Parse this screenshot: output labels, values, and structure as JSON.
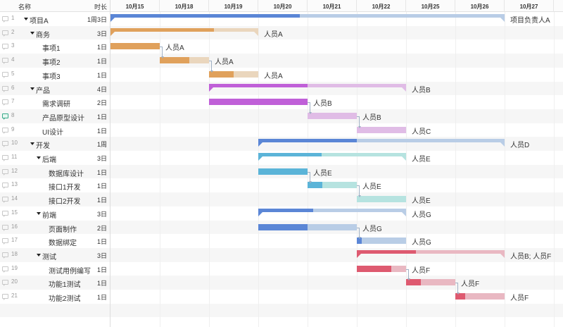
{
  "header": {
    "name_label": "名称",
    "duration_label": "时长"
  },
  "dates": [
    "10月15",
    "10月18",
    "10月19",
    "10月20",
    "10月21",
    "10月22",
    "10月25",
    "10月26",
    "10月27"
  ],
  "colors": {
    "blue_done": "#5b86d6",
    "blue_rest": "#b9cde6",
    "orange_done": "#e0a15c",
    "orange_rest": "#ead6bd",
    "purple_done": "#c060d8",
    "purple_rest": "#e0bce6",
    "cyan_done": "#5bb4d8",
    "cyan_rest": "#b6e3e0",
    "red_done": "#de5a70",
    "red_rest": "#e9b8c2"
  },
  "tasks": [
    {
      "id": "1",
      "name": "项目A",
      "duration": "1周3日",
      "level": 0,
      "group": true,
      "assignee": "项目负责人A",
      "start": 0,
      "end": 8,
      "progress": 0.48,
      "color": "blue"
    },
    {
      "id": "2",
      "name": "商务",
      "duration": "3日",
      "level": 1,
      "group": true,
      "assignee": "人员A",
      "start": 0,
      "end": 3,
      "progress": 0.7,
      "color": "orange"
    },
    {
      "id": "3",
      "name": "事项1",
      "duration": "1日",
      "level": 2,
      "group": false,
      "assignee": "人员A",
      "start": 0,
      "end": 1,
      "progress": 1.0,
      "color": "orange"
    },
    {
      "id": "4",
      "name": "事项2",
      "duration": "1日",
      "level": 2,
      "group": false,
      "assignee": "人员A",
      "start": 1,
      "end": 2,
      "progress": 0.6,
      "color": "orange"
    },
    {
      "id": "5",
      "name": "事项3",
      "duration": "1日",
      "level": 2,
      "group": false,
      "assignee": "人员A",
      "start": 2,
      "end": 3,
      "progress": 0.5,
      "color": "orange"
    },
    {
      "id": "6",
      "name": "产品",
      "duration": "4日",
      "level": 1,
      "group": true,
      "assignee": "人员B",
      "start": 2,
      "end": 6,
      "progress": 0.5,
      "color": "purple"
    },
    {
      "id": "7",
      "name": "需求调研",
      "duration": "2日",
      "level": 2,
      "group": false,
      "assignee": "人员B",
      "start": 2,
      "end": 4,
      "progress": 1.0,
      "color": "purple"
    },
    {
      "id": "8",
      "name": "产品原型设计",
      "duration": "1日",
      "level": 2,
      "group": false,
      "assignee": "人员B",
      "start": 4,
      "end": 5,
      "progress": 0.0,
      "color": "purple",
      "comment": true
    },
    {
      "id": "9",
      "name": "UI设计",
      "duration": "1日",
      "level": 2,
      "group": false,
      "assignee": "人员C",
      "start": 5,
      "end": 6,
      "progress": 0.0,
      "color": "purple"
    },
    {
      "id": "10",
      "name": "开发",
      "duration": "1周",
      "level": 1,
      "group": true,
      "assignee": "人员D",
      "start": 3,
      "end": 8,
      "progress": 0.4,
      "color": "blue"
    },
    {
      "id": "11",
      "name": "后端",
      "duration": "3日",
      "level": 2,
      "group": true,
      "assignee": "人员E",
      "start": 3,
      "end": 6,
      "progress": 0.43,
      "color": "cyan"
    },
    {
      "id": "12",
      "name": "数据库设计",
      "duration": "1日",
      "level": 3,
      "group": false,
      "assignee": "人员E",
      "start": 3,
      "end": 4,
      "progress": 1.0,
      "color": "cyan"
    },
    {
      "id": "13",
      "name": "接口1开发",
      "duration": "1日",
      "level": 3,
      "group": false,
      "assignee": "人员E",
      "start": 4,
      "end": 5,
      "progress": 0.3,
      "color": "cyan"
    },
    {
      "id": "14",
      "name": "接口2开发",
      "duration": "1日",
      "level": 3,
      "group": false,
      "assignee": "人员E",
      "start": 5,
      "end": 6,
      "progress": 0.0,
      "color": "cyan"
    },
    {
      "id": "15",
      "name": "前端",
      "duration": "3日",
      "level": 2,
      "group": true,
      "assignee": "人员G",
      "start": 3,
      "end": 6,
      "progress": 0.37,
      "color": "blue"
    },
    {
      "id": "16",
      "name": "页面制作",
      "duration": "2日",
      "level": 3,
      "group": false,
      "assignee": "人员G",
      "start": 3,
      "end": 5,
      "progress": 0.5,
      "color": "blue"
    },
    {
      "id": "17",
      "name": "数据绑定",
      "duration": "1日",
      "level": 3,
      "group": false,
      "assignee": "人员G",
      "start": 5,
      "end": 6,
      "progress": 0.1,
      "color": "blue"
    },
    {
      "id": "18",
      "name": "测试",
      "duration": "3日",
      "level": 2,
      "group": true,
      "assignee": "人员B; 人员F",
      "start": 5,
      "end": 8,
      "progress": 0.4,
      "color": "red"
    },
    {
      "id": "19",
      "name": "测试用例编写",
      "duration": "1日",
      "level": 3,
      "group": false,
      "assignee": "人员F",
      "start": 5,
      "end": 6,
      "progress": 0.7,
      "color": "red"
    },
    {
      "id": "20",
      "name": "功能1测试",
      "duration": "1日",
      "level": 3,
      "group": false,
      "assignee": "人员F",
      "start": 6,
      "end": 7,
      "progress": 0.3,
      "color": "red"
    },
    {
      "id": "21",
      "name": "功能2测试",
      "duration": "1日",
      "level": 3,
      "group": false,
      "assignee": "人员F",
      "start": 7,
      "end": 8,
      "progress": 0.2,
      "color": "red"
    }
  ],
  "dependencies": [
    [
      "3",
      "4"
    ],
    [
      "4",
      "5"
    ],
    [
      "7",
      "8"
    ],
    [
      "8",
      "9"
    ],
    [
      "12",
      "13"
    ],
    [
      "13",
      "14"
    ],
    [
      "16",
      "17"
    ],
    [
      "19",
      "20"
    ],
    [
      "20",
      "21"
    ]
  ]
}
